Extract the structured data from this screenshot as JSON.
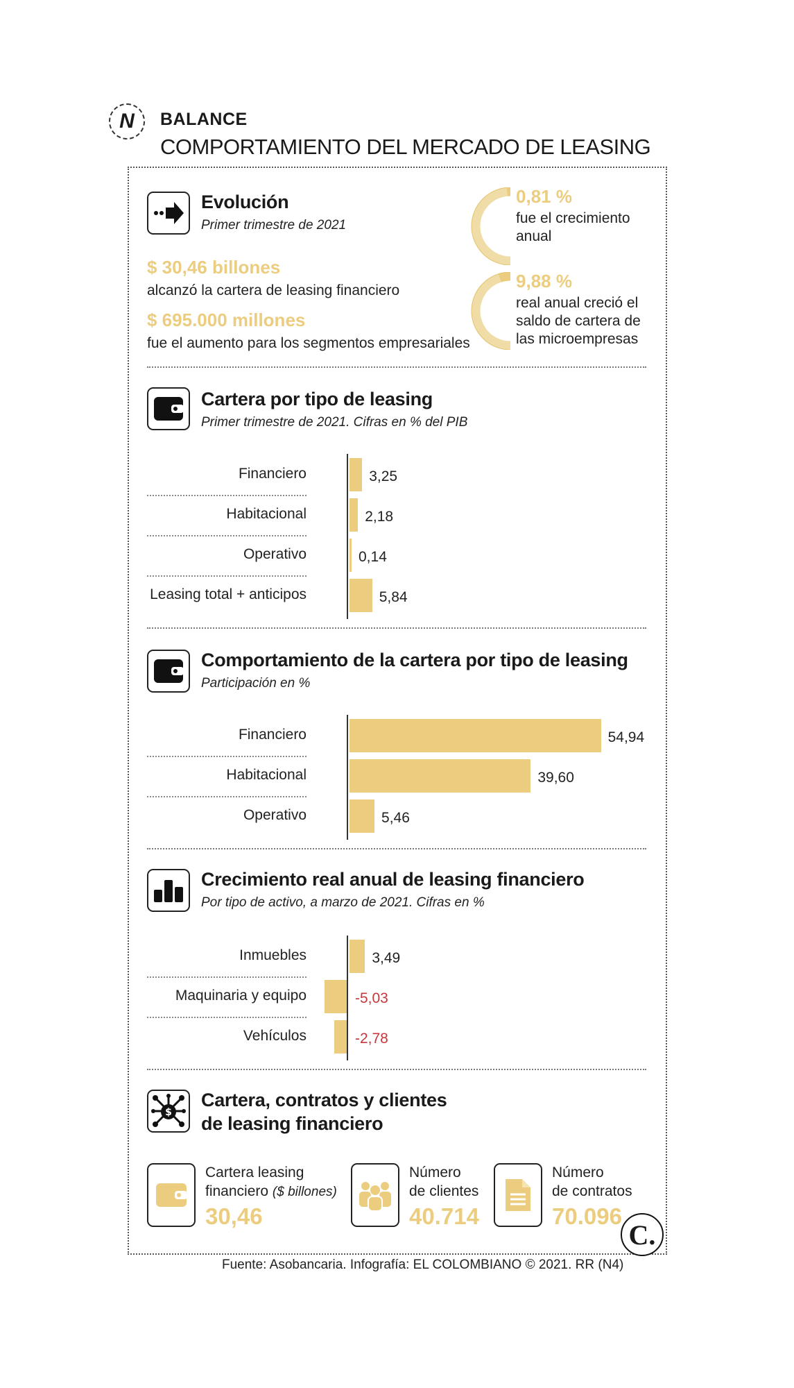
{
  "header": {
    "kicker": "BALANCE",
    "title": "COMPORTAMIENTO DEL MERCADO DE LEASING",
    "brand_letter": "N"
  },
  "evolucion": {
    "title": "Evolución",
    "subtitle": "Primer trimestre de 2021",
    "fact1_value": "$ 30,46 billones",
    "fact1_text": "alcanzó la cartera de leasing financiero",
    "fact2_value": "$ 695.000 millones",
    "fact2_text": "fue el aumento para los segmentos empresariales",
    "stat1_value": "0,81 %",
    "stat1_line1": "fue el crecimiento",
    "stat1_line2": "anual",
    "stat1_fraction": 0.0081,
    "stat2_value": "9,88 %",
    "stat2_line1": "real anual creció el",
    "stat2_line2": "saldo de cartera de",
    "stat2_line3": "las microempresas",
    "stat2_fraction": 0.0988
  },
  "chart_data": [
    {
      "type": "bar",
      "title": "Cartera por tipo de leasing",
      "subtitle": "Primer trimestre de 2021. Cifras en % del PIB",
      "categories": [
        "Financiero",
        "Habitacional",
        "Operativo",
        "Leasing total + anticipos"
      ],
      "values": [
        3.25,
        2.18,
        0.14,
        5.84
      ],
      "labels": [
        "3,25",
        "2,18",
        "0,14",
        "5,84"
      ]
    },
    {
      "type": "bar",
      "title": "Comportamiento de la cartera por tipo de leasing",
      "subtitle": "Participación en %",
      "categories": [
        "Financiero",
        "Habitacional",
        "Operativo"
      ],
      "values": [
        54.94,
        39.6,
        5.46
      ],
      "labels": [
        "54,94",
        "39,60",
        "5,46"
      ]
    },
    {
      "type": "bar",
      "title": "Crecimiento real anual de leasing financiero",
      "subtitle": "Por tipo de activo, a marzo de 2021. Cifras en %",
      "categories": [
        "Inmuebles",
        "Maquinaria y equipo",
        "Vehículos"
      ],
      "values": [
        3.49,
        -5.03,
        -2.78
      ],
      "labels": [
        "3,49",
        "-5,03",
        "-2,78"
      ]
    }
  ],
  "cartera": {
    "title_line1": "Cartera, contratos y clientes",
    "title_line2": "de leasing financiero",
    "item1_line1": "Cartera leasing",
    "item1_line2": "financiero",
    "item1_unit": "($ billones)",
    "item1_value": "30,46",
    "item2_line1": "Número",
    "item2_line2": "de clientes",
    "item2_value": "40.714",
    "item3_line1": "Número",
    "item3_line2": "de contratos",
    "item3_value": "70.096"
  },
  "footer": {
    "source": "Fuente: Asobancaria. Infografía: EL COLOMBIANO © 2021. RR (N4)",
    "logo_letter": "C."
  },
  "colors": {
    "gold": "#eccd7f",
    "negative": "#c8363b",
    "ink": "#1a1a1a"
  }
}
